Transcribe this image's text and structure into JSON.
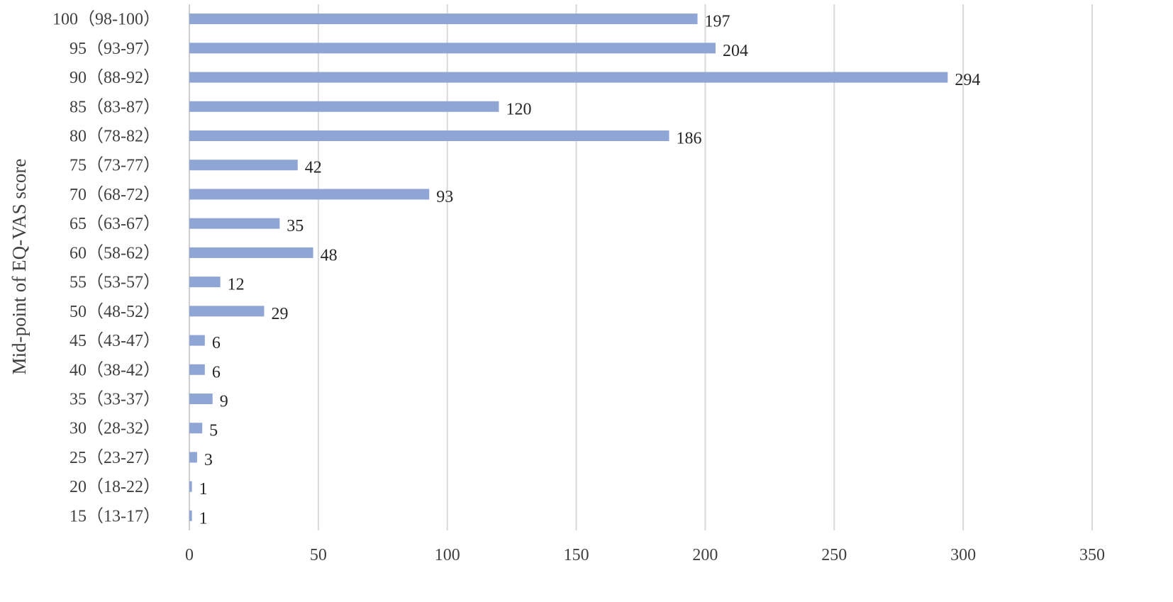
{
  "chart_data": {
    "type": "bar",
    "orientation": "horizontal",
    "title": "",
    "xlabel": "",
    "ylabel": "Mid-point of EQ-VAS score",
    "categories": [
      "100（98-100）",
      "95（93-97）",
      "90（88-92）",
      "85（83-87）",
      "80（78-82）",
      "75（73-77）",
      "70（68-72）",
      "65（63-67）",
      "60（58-62）",
      "55（53-57）",
      "50（48-52）",
      "45（43-47）",
      "40（38-42）",
      "35（33-37）",
      "30（28-32）",
      "25（23-27）",
      "20（18-22）",
      "15（13-17）"
    ],
    "values": [
      197,
      204,
      294,
      120,
      186,
      42,
      93,
      35,
      48,
      12,
      29,
      6,
      6,
      9,
      5,
      3,
      1,
      1
    ],
    "data_labels": [
      "197",
      "204",
      "294",
      "120",
      "186",
      "42",
      "93",
      "35",
      "48",
      "12",
      "29",
      "6",
      "6",
      "9",
      "5",
      "3",
      "1",
      "1"
    ],
    "xlim": [
      0,
      350
    ],
    "xticks": [
      0,
      50,
      100,
      150,
      200,
      250,
      300,
      350
    ],
    "xtick_labels": [
      "0",
      "50",
      "100",
      "150",
      "200",
      "250",
      "300",
      "350"
    ],
    "grid": true,
    "legend": false,
    "colors": {
      "bar": "#8fa5d4",
      "grid": "#d9d9d9",
      "text": "#404040"
    }
  }
}
